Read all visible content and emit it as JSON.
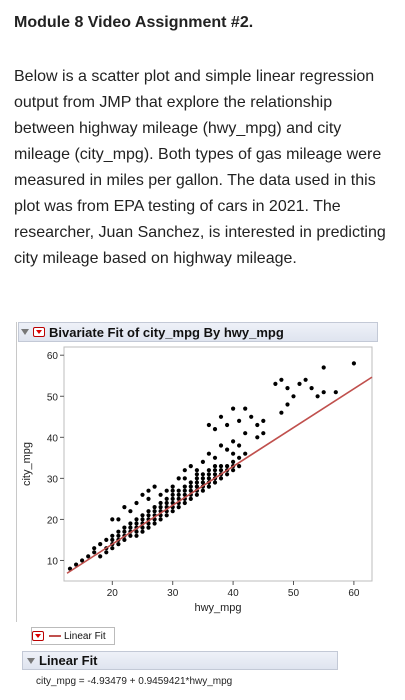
{
  "title": "Module 8 Video Assignment #2.",
  "description": "Below is a scatter plot and simple linear regression output from JMP that explore the relationship between highway mileage (hwy_mpg) and city mileage (city_mpg). Both types of gas mileage were measured in miles per gallon. The data used in this plot was from EPA testing of cars in 2021. The researcher, Juan Sanchez, is interested in predicting city mileage based on highway mileage.",
  "report": {
    "header": "Bivariate Fit of city_mpg By hwy_mpg",
    "legend_label": "Linear Fit",
    "fit_header": "Linear Fit",
    "equation": "city_mpg = -4.93479 + 0.9459421*hwy_mpg"
  },
  "colors": {
    "points": "#000000",
    "fit_line": "#c0504d",
    "accent": "#d00000"
  },
  "icons": [
    "disclosure-triangle-icon",
    "red-menu-icon"
  ],
  "chart_data": {
    "type": "scatter",
    "xlabel": "hwy_mpg",
    "ylabel": "city_mpg",
    "xlim": [
      12,
      63
    ],
    "ylim": [
      5,
      62
    ],
    "xticks": [
      20,
      30,
      40,
      50,
      60
    ],
    "yticks": [
      10,
      20,
      30,
      40,
      50,
      60
    ],
    "grid": false,
    "fit": {
      "intercept": -4.93479,
      "slope": 0.9459421
    },
    "points": [
      [
        13,
        8
      ],
      [
        14,
        9
      ],
      [
        15,
        10
      ],
      [
        16,
        11
      ],
      [
        17,
        12
      ],
      [
        17,
        13
      ],
      [
        18,
        11
      ],
      [
        18,
        14
      ],
      [
        19,
        12
      ],
      [
        19,
        13
      ],
      [
        19,
        15
      ],
      [
        20,
        13
      ],
      [
        20,
        14
      ],
      [
        20,
        15
      ],
      [
        20,
        16
      ],
      [
        21,
        14
      ],
      [
        21,
        15
      ],
      [
        21,
        16
      ],
      [
        21,
        17
      ],
      [
        22,
        15
      ],
      [
        22,
        16
      ],
      [
        22,
        17
      ],
      [
        22,
        18
      ],
      [
        23,
        16
      ],
      [
        23,
        17
      ],
      [
        23,
        18
      ],
      [
        23,
        19
      ],
      [
        24,
        16
      ],
      [
        24,
        17
      ],
      [
        24,
        18
      ],
      [
        24,
        19
      ],
      [
        24,
        20
      ],
      [
        25,
        17
      ],
      [
        25,
        18
      ],
      [
        25,
        19
      ],
      [
        25,
        20
      ],
      [
        25,
        21
      ],
      [
        26,
        18
      ],
      [
        26,
        19
      ],
      [
        26,
        20
      ],
      [
        26,
        21
      ],
      [
        26,
        22
      ],
      [
        27,
        19
      ],
      [
        27,
        20
      ],
      [
        27,
        21
      ],
      [
        27,
        22
      ],
      [
        27,
        23
      ],
      [
        28,
        20
      ],
      [
        28,
        21
      ],
      [
        28,
        22
      ],
      [
        28,
        23
      ],
      [
        28,
        24
      ],
      [
        29,
        21
      ],
      [
        29,
        22
      ],
      [
        29,
        23
      ],
      [
        29,
        24
      ],
      [
        29,
        25
      ],
      [
        30,
        22
      ],
      [
        30,
        23
      ],
      [
        30,
        24
      ],
      [
        30,
        25
      ],
      [
        30,
        26
      ],
      [
        30,
        27
      ],
      [
        31,
        23
      ],
      [
        31,
        24
      ],
      [
        31,
        25
      ],
      [
        31,
        26
      ],
      [
        31,
        27
      ],
      [
        32,
        24
      ],
      [
        32,
        25
      ],
      [
        32,
        26
      ],
      [
        32,
        27
      ],
      [
        32,
        28
      ],
      [
        32,
        30
      ],
      [
        33,
        25
      ],
      [
        33,
        26
      ],
      [
        33,
        27
      ],
      [
        33,
        28
      ],
      [
        33,
        29
      ],
      [
        34,
        26
      ],
      [
        34,
        27
      ],
      [
        34,
        28
      ],
      [
        34,
        29
      ],
      [
        34,
        30
      ],
      [
        34,
        31
      ],
      [
        35,
        27
      ],
      [
        35,
        28
      ],
      [
        35,
        29
      ],
      [
        35,
        30
      ],
      [
        35,
        31
      ],
      [
        36,
        28
      ],
      [
        36,
        29
      ],
      [
        36,
        30
      ],
      [
        36,
        31
      ],
      [
        36,
        32
      ],
      [
        37,
        29
      ],
      [
        37,
        30
      ],
      [
        37,
        31
      ],
      [
        37,
        32
      ],
      [
        37,
        33
      ],
      [
        38,
        30
      ],
      [
        38,
        31
      ],
      [
        38,
        32
      ],
      [
        38,
        33
      ],
      [
        39,
        31
      ],
      [
        39,
        32
      ],
      [
        39,
        33
      ],
      [
        40,
        32
      ],
      [
        40,
        33
      ],
      [
        40,
        34
      ],
      [
        41,
        33
      ],
      [
        41,
        35
      ],
      [
        42,
        36
      ],
      [
        25,
        26
      ],
      [
        26,
        27
      ],
      [
        27,
        28
      ],
      [
        29,
        27
      ],
      [
        30,
        28
      ],
      [
        31,
        30
      ],
      [
        32,
        32
      ],
      [
        33,
        33
      ],
      [
        34,
        32
      ],
      [
        35,
        34
      ],
      [
        36,
        36
      ],
      [
        37,
        35
      ],
      [
        38,
        38
      ],
      [
        39,
        37
      ],
      [
        40,
        36
      ],
      [
        40,
        39
      ],
      [
        41,
        38
      ],
      [
        44,
        40
      ],
      [
        45,
        41
      ],
      [
        44,
        43
      ],
      [
        45,
        44
      ],
      [
        42,
        41
      ],
      [
        37,
        42
      ],
      [
        39,
        43
      ],
      [
        41,
        44
      ],
      [
        43,
        45
      ],
      [
        42,
        47
      ],
      [
        48,
        46
      ],
      [
        49,
        48
      ],
      [
        50,
        50
      ],
      [
        49,
        52
      ],
      [
        51,
        53
      ],
      [
        52,
        54
      ],
      [
        53,
        52
      ],
      [
        54,
        50
      ],
      [
        55,
        51
      ],
      [
        57,
        51
      ],
      [
        47,
        53
      ],
      [
        48,
        54
      ],
      [
        55,
        57
      ],
      [
        60,
        58
      ],
      [
        36,
        43
      ],
      [
        38,
        45
      ],
      [
        40,
        47
      ],
      [
        20,
        20
      ],
      [
        22,
        23
      ],
      [
        23,
        22
      ],
      [
        24,
        24
      ],
      [
        21,
        20
      ],
      [
        28,
        26
      ],
      [
        26,
        25
      ]
    ]
  }
}
